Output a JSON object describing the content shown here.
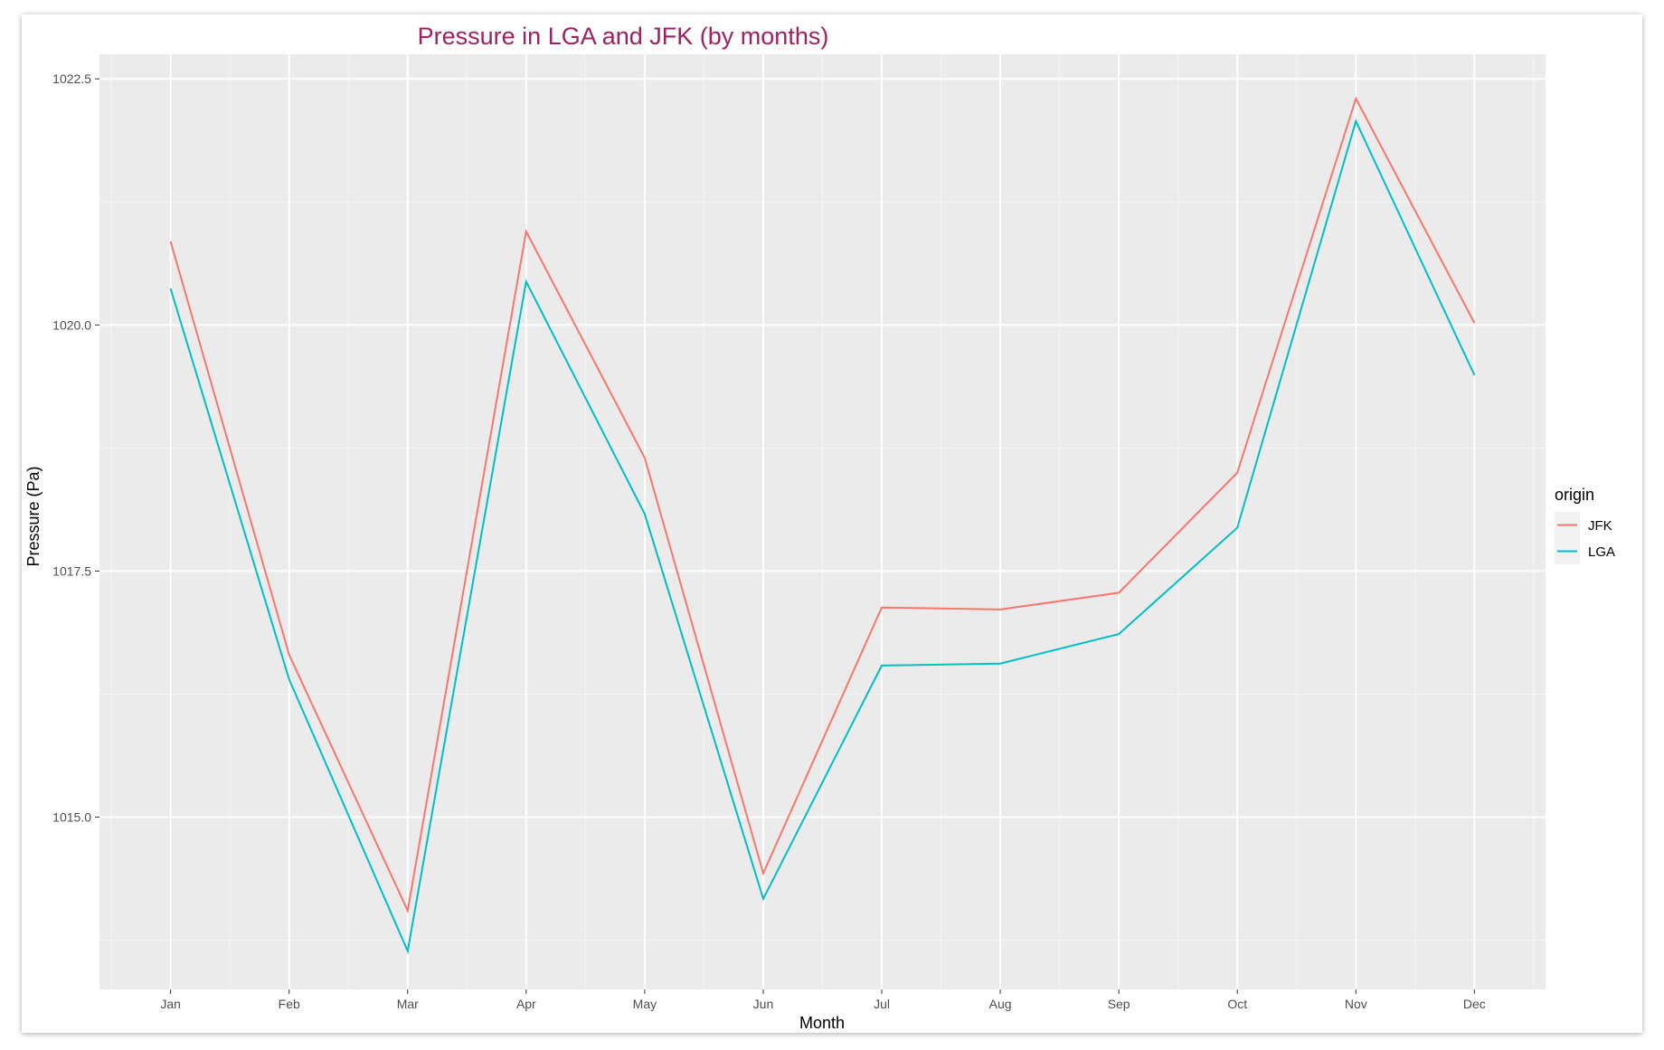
{
  "chart_data": {
    "type": "line",
    "title": "Pressure in LGA and JFK (by months)",
    "xlabel": "Month",
    "ylabel": "Pressure (Pa)",
    "categories": [
      "Jan",
      "Feb",
      "Mar",
      "Apr",
      "May",
      "Jun",
      "Jul",
      "Aug",
      "Sep",
      "Oct",
      "Nov",
      "Dec"
    ],
    "yticks": [
      1015.0,
      1017.5,
      1020.0,
      1022.5
    ],
    "ytick_labels": [
      "1015.0",
      "1017.5",
      "1020.0",
      "1022.5"
    ],
    "ylim": [
      1013.25,
      1022.75
    ],
    "grid": true,
    "legend": {
      "title": "origin",
      "position": "right"
    },
    "series": [
      {
        "name": "JFK",
        "color": "#f8766d",
        "values": [
          1020.85,
          1016.65,
          1014.05,
          1020.95,
          1018.65,
          1014.43,
          1017.13,
          1017.11,
          1017.28,
          1018.5,
          1022.3,
          1020.02
        ]
      },
      {
        "name": "LGA",
        "color": "#00bfc4",
        "values": [
          1020.37,
          1016.4,
          1013.64,
          1020.44,
          1018.08,
          1014.17,
          1016.54,
          1016.56,
          1016.86,
          1017.94,
          1022.07,
          1019.49
        ]
      }
    ]
  }
}
